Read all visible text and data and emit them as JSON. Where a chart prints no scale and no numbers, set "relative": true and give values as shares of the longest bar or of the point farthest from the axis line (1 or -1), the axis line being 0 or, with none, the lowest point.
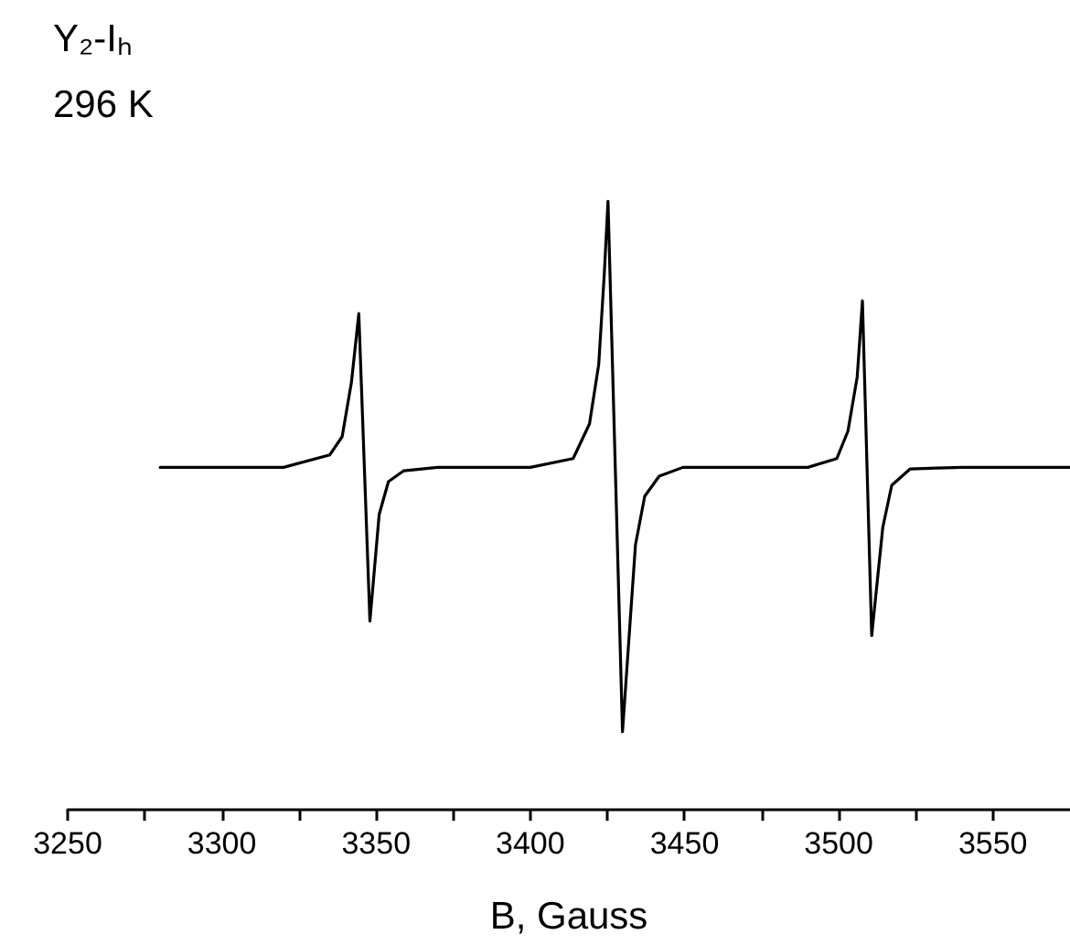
{
  "chart_data": {
    "type": "line",
    "title": "Y₂-Iₕ",
    "subtitle": "296 K",
    "xlabel": "B, Gauss",
    "relative": true,
    "grid": false,
    "marker": "none",
    "line_style": "solid",
    "tick_labels": "x",
    "xlim": [
      3250,
      3575
    ],
    "xticks": [
      3250,
      {
        "value": 3275,
        "label": null
      },
      3300,
      {
        "value": 3325,
        "label": null
      },
      3350,
      {
        "value": 3375,
        "label": null
      },
      3400,
      {
        "value": 3425,
        "label": null
      },
      3450,
      {
        "value": 3475,
        "label": null
      },
      3500,
      {
        "value": 3525,
        "label": null
      },
      3550
    ],
    "series": [
      {
        "color": "#000000",
        "x": [
          3280,
          3320,
          3335,
          3339,
          3342,
          3344.4,
          3348,
          3351,
          3354,
          3359,
          3370,
          3400,
          3413.9,
          3419.2,
          3422.2,
          3424,
          3425.2,
          3429.9,
          3434.1,
          3437.1,
          3441.8,
          3449.5,
          3470,
          3490,
          3499.4,
          3503,
          3506,
          3507.7,
          3510.7,
          3514.3,
          3517.2,
          3523.2,
          3540,
          3575
        ],
        "values": [
          0.5625,
          0.5625,
          0.583,
          0.613,
          0.702,
          0.815,
          0.31,
          0.485,
          0.539,
          0.557,
          0.5625,
          0.5625,
          0.577,
          0.634,
          0.732,
          0.881,
          1,
          0.128,
          0.435,
          0.515,
          0.548,
          0.5625,
          0.5625,
          0.5625,
          0.577,
          0.622,
          0.711,
          0.836,
          0.286,
          0.464,
          0.533,
          0.56,
          0.5625,
          0.5625
        ]
      }
    ]
  }
}
